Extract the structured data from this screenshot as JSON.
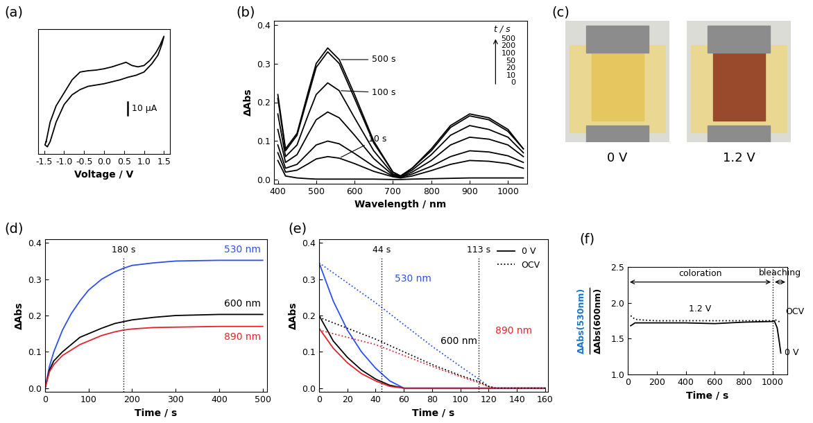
{
  "chart_data": [
    {
      "type": "line",
      "title": "(a)",
      "xlabel": "Voltage / V",
      "tick_labels": "x",
      "xlim": [
        -1.65,
        1.65
      ],
      "ylim": [
        -48,
        48
      ],
      "xticks": [
        -1.5,
        {
          "value": -1,
          "label": "-1.0"
        },
        -0.5,
        {
          "value": 0,
          "label": "0.0"
        },
        0.5,
        {
          "value": 1,
          "label": "1.0"
        },
        1.5
      ],
      "series": [
        {
          "color": "#000000",
          "line_style": "solid",
          "x": [
            -1.45,
            -1.35,
            -1.2,
            -1.0,
            -0.8,
            -0.6,
            -0.4,
            -0.2,
            0.0,
            0.2,
            0.4,
            0.55,
            0.7,
            0.85,
            1.0,
            1.15,
            1.3,
            1.4,
            1.5,
            1.45,
            1.35,
            1.2,
            1.0,
            0.8,
            0.6,
            0.4,
            0.2,
            0.0,
            -0.2,
            -0.4,
            -0.6,
            -0.8,
            -1.0,
            -1.2,
            -1.35,
            -1.42,
            -1.48,
            -1.45
          ],
          "values": [
            -38.5,
            -23.5,
            -11,
            -1,
            9,
            15,
            16,
            16.5,
            17.5,
            19,
            21,
            22.5,
            20,
            19,
            20,
            24,
            30,
            35.5,
            42.5,
            36.5,
            28,
            21.5,
            15,
            12.5,
            11,
            9,
            7.5,
            6,
            5,
            4,
            1.5,
            -2.5,
            -10,
            -23.5,
            -38.5,
            -42.5,
            -41,
            -38.5
          ]
        }
      ],
      "scale_bar": {
        "value": 10,
        "label": "10 µA"
      }
    },
    {
      "type": "line",
      "title": "(b)",
      "xlabel": "Wavelength / nm",
      "ylabel": "ΔAbs",
      "xlim": [
        390,
        1050
      ],
      "ylim": [
        -0.01,
        0.41
      ],
      "xticks": [
        400,
        500,
        600,
        700,
        800,
        900,
        1000
      ],
      "yticks": [
        0.0,
        0.1,
        0.2,
        0.3,
        0.4
      ],
      "x": [
        400,
        420,
        450,
        480,
        500,
        530,
        560,
        600,
        650,
        700,
        720,
        750,
        800,
        850,
        900,
        950,
        1000,
        1040
      ],
      "series_title": "t / s",
      "series": [
        {
          "name": "0",
          "color": "#000000",
          "line_style": "solid",
          "values": [
            0.05,
            0.01,
            0.005,
            0.003,
            0.002,
            0.002,
            0.002,
            0.002,
            0.002,
            0.001,
            0.001,
            0.002,
            0.003,
            0.004,
            0.005,
            0.005,
            0.005,
            0.005
          ]
        },
        {
          "name": "10",
          "color": "#000000",
          "line_style": "solid",
          "values": [
            0.07,
            0.02,
            0.025,
            0.042,
            0.054,
            0.06,
            0.056,
            0.042,
            0.022,
            0.008,
            0.005,
            0.01,
            0.024,
            0.04,
            0.05,
            0.048,
            0.042,
            0.03
          ]
        },
        {
          "name": "20",
          "color": "#000000",
          "line_style": "solid",
          "values": [
            0.09,
            0.03,
            0.04,
            0.07,
            0.09,
            0.1,
            0.093,
            0.068,
            0.035,
            0.01,
            0.007,
            0.015,
            0.035,
            0.06,
            0.075,
            0.072,
            0.062,
            0.045
          ]
        },
        {
          "name": "50",
          "color": "#000000",
          "line_style": "solid",
          "values": [
            0.13,
            0.045,
            0.065,
            0.12,
            0.155,
            0.175,
            0.16,
            0.115,
            0.055,
            0.012,
            0.008,
            0.02,
            0.05,
            0.09,
            0.11,
            0.105,
            0.09,
            0.06
          ]
        },
        {
          "name": "100",
          "color": "#000000",
          "line_style": "solid",
          "values": [
            0.17,
            0.06,
            0.09,
            0.17,
            0.22,
            0.25,
            0.23,
            0.16,
            0.075,
            0.015,
            0.01,
            0.025,
            0.065,
            0.115,
            0.14,
            0.13,
            0.11,
            0.07
          ]
        },
        {
          "name": "200",
          "color": "#000000",
          "line_style": "solid",
          "values": [
            0.21,
            0.075,
            0.115,
            0.22,
            0.29,
            0.33,
            0.3,
            0.21,
            0.095,
            0.02,
            0.01,
            0.03,
            0.075,
            0.135,
            0.165,
            0.155,
            0.125,
            0.08
          ]
        },
        {
          "name": "500",
          "color": "#000000",
          "line_style": "solid",
          "values": [
            0.22,
            0.08,
            0.12,
            0.23,
            0.3,
            0.34,
            0.31,
            0.22,
            0.1,
            0.02,
            0.01,
            0.03,
            0.08,
            0.14,
            0.17,
            0.16,
            0.13,
            0.08
          ]
        }
      ],
      "annotations": [
        {
          "text": "500 s",
          "series": "500",
          "x": 560
        },
        {
          "text": "100 s",
          "series": "100",
          "x": 560
        },
        {
          "text": "10 s",
          "series": "10",
          "x": 560
        }
      ]
    },
    {
      "type": "line",
      "title": "(d)",
      "xlabel": "Time / s",
      "ylabel": "ΔAbs",
      "xlim": [
        0,
        510
      ],
      "ylim": [
        -0.01,
        0.41
      ],
      "xticks": [
        0,
        100,
        200,
        300,
        400,
        500
      ],
      "yticks": [
        0.0,
        0.1,
        0.2,
        0.3,
        0.4
      ],
      "x": [
        0,
        10,
        20,
        40,
        60,
        80,
        100,
        130,
        160,
        180,
        200,
        250,
        300,
        400,
        500
      ],
      "series": [
        {
          "name": "530 nm",
          "color": "#2b4ff0",
          "line_style": "solid",
          "values": [
            0,
            0.06,
            0.1,
            0.16,
            0.205,
            0.24,
            0.27,
            0.3,
            0.32,
            0.33,
            0.338,
            0.345,
            0.35,
            0.352,
            0.352
          ]
        },
        {
          "name": "600 nm",
          "color": "#000000",
          "line_style": "solid",
          "values": [
            0,
            0.05,
            0.075,
            0.1,
            0.12,
            0.14,
            0.15,
            0.165,
            0.178,
            0.183,
            0.188,
            0.195,
            0.2,
            0.203,
            0.203
          ]
        },
        {
          "name": "890 nm",
          "color": "#e8202a",
          "line_style": "solid",
          "values": [
            0,
            0.045,
            0.065,
            0.09,
            0.105,
            0.12,
            0.13,
            0.145,
            0.155,
            0.16,
            0.163,
            0.167,
            0.168,
            0.17,
            0.17
          ]
        }
      ],
      "vlines": [
        {
          "x": 180,
          "label": "180 s"
        }
      ]
    },
    {
      "type": "line",
      "title": "(e)",
      "xlabel": "Time / s",
      "ylabel": "ΔAbs",
      "xlim": [
        0,
        162
      ],
      "ylim": [
        -0.01,
        0.41
      ],
      "xticks": [
        0,
        20,
        40,
        60,
        80,
        100,
        120,
        140,
        160
      ],
      "yticks": [
        0.0,
        0.1,
        0.2,
        0.3,
        0.4
      ],
      "legend": "upper right",
      "series": [
        {
          "name": "530 nm",
          "condition": "0 V",
          "color": "#2b4ff0",
          "line_style": "solid",
          "x": [
            0,
            10,
            20,
            30,
            40,
            50,
            60,
            80,
            100,
            120,
            140,
            160
          ],
          "values": [
            0.345,
            0.24,
            0.16,
            0.1,
            0.055,
            0.02,
            0.0,
            0,
            0,
            0,
            0,
            0
          ]
        },
        {
          "name": "600 nm",
          "condition": "0 V",
          "color": "#000000",
          "line_style": "solid",
          "x": [
            0,
            10,
            20,
            30,
            40,
            50,
            60,
            80,
            100,
            120,
            140,
            160
          ],
          "values": [
            0.2,
            0.13,
            0.085,
            0.05,
            0.025,
            0.008,
            0,
            0,
            0,
            0,
            0,
            0
          ]
        },
        {
          "name": "890 nm",
          "condition": "0 V",
          "color": "#e8202a",
          "line_style": "solid",
          "x": [
            0,
            10,
            20,
            30,
            40,
            50,
            60,
            80,
            100,
            120,
            140,
            160
          ],
          "values": [
            0.165,
            0.11,
            0.07,
            0.04,
            0.02,
            0.005,
            0,
            0,
            0,
            0,
            0,
            0
          ]
        },
        {
          "name": "530 nm",
          "condition": "OCV",
          "color": "#2b4ff0",
          "line_style": "dotted",
          "x": [
            0,
            20,
            40,
            60,
            80,
            100,
            113,
            120,
            125,
            140,
            160
          ],
          "values": [
            0.345,
            0.29,
            0.235,
            0.175,
            0.115,
            0.06,
            0.025,
            0.005,
            0,
            0,
            0
          ]
        },
        {
          "name": "600 nm",
          "condition": "OCV",
          "color": "#000000",
          "line_style": "dotted",
          "x": [
            0,
            20,
            40,
            60,
            80,
            100,
            113,
            120,
            125,
            140,
            160
          ],
          "values": [
            0.195,
            0.165,
            0.135,
            0.1,
            0.065,
            0.035,
            0.018,
            0.005,
            0,
            0,
            0
          ]
        },
        {
          "name": "890 nm",
          "condition": "OCV",
          "color": "#e8202a",
          "line_style": "dotted",
          "x": [
            0,
            20,
            40,
            60,
            80,
            100,
            113,
            120,
            125,
            140,
            160
          ],
          "values": [
            0.16,
            0.14,
            0.12,
            0.09,
            0.06,
            0.032,
            0.015,
            0.004,
            0,
            0,
            0
          ]
        }
      ],
      "vlines": [
        {
          "x": 44,
          "label": "44 s"
        },
        {
          "x": 113,
          "label": "113 s"
        }
      ]
    },
    {
      "type": "line",
      "title": "(f)",
      "xlabel": "Time / s",
      "ylabel": {
        "numerator": "ΔAbs(530nm)",
        "denominator": "ΔAbs(600nm)"
      },
      "xlim": [
        0,
        1100
      ],
      "ylim": [
        1,
        2.5
      ],
      "xticks": [
        0,
        200,
        400,
        600,
        800,
        1000
      ],
      "yticks": [
        {
          "value": 1,
          "label": "1.0"
        },
        1.5,
        {
          "value": 2,
          "label": "2.0"
        },
        2.5
      ],
      "series": [
        {
          "name": "0 V",
          "color": "#000000",
          "line_style": "solid",
          "x": [
            20,
            50,
            100,
            200,
            400,
            600,
            800,
            1000,
            1010,
            1030,
            1045,
            1055
          ],
          "values": [
            1.68,
            1.72,
            1.72,
            1.72,
            1.72,
            1.71,
            1.73,
            1.74,
            1.75,
            1.65,
            1.45,
            1.3
          ]
        },
        {
          "name": "OCV",
          "color": "#000000",
          "line_style": "dotted",
          "x": [
            20,
            50,
            100,
            200,
            400,
            600,
            800,
            1000,
            1020,
            1040,
            1060
          ],
          "values": [
            1.82,
            1.77,
            1.76,
            1.75,
            1.75,
            1.75,
            1.75,
            1.75,
            1.76,
            1.74,
            1.73
          ]
        }
      ],
      "vlines": [
        {
          "x": 1000
        }
      ],
      "annotations": [
        {
          "text": "coloration",
          "x0": 0,
          "x1": 1000
        },
        {
          "text": "bleaching",
          "x0": 1000,
          "x1": 1100
        },
        {
          "text": "1.2 V",
          "x": 500,
          "y": 1.85
        }
      ]
    }
  ],
  "photo_panel": {
    "title": "(c)",
    "captions": [
      "0 V",
      "1.2 V"
    ]
  }
}
